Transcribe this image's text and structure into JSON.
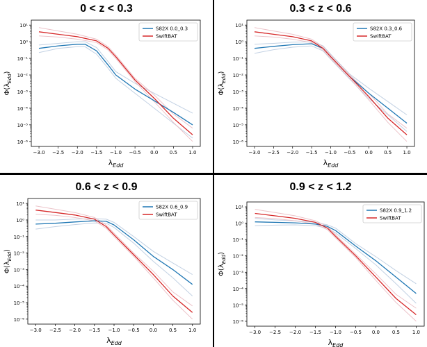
{
  "colors": {
    "s82x": "#1f77b4",
    "swift": "#d62728",
    "band_s82x": "#b7c9de",
    "band_swift": "#e9b8bf",
    "divider": "#000000"
  },
  "panels": [
    {
      "title": "0 < z < 0.3",
      "chart_data": {
        "type": "line",
        "title": "0 < z < 0.3",
        "xlabel": "λ_Edd",
        "ylabel": "Φ(λ_Edd)",
        "xlim": [
          -3.2,
          1.2
        ],
        "ylog": true,
        "ylim_exp": [
          -6.3,
          1.3
        ],
        "xticks": [
          -3.0,
          -2.5,
          -2.0,
          -1.5,
          -1.0,
          -0.5,
          0.0,
          0.5,
          1.0
        ],
        "xtick_labels": [
          "−3.0",
          "−2.5",
          "−2.0",
          "−1.5",
          "−1.0",
          "−0.5",
          "0.0",
          "0.5",
          "1.0"
        ],
        "yticks_exp": [
          -6,
          -5,
          -4,
          -3,
          -2,
          -1,
          0,
          1
        ],
        "ytick_labels": [
          "10⁻⁶",
          "10⁻⁵",
          "10⁻⁴",
          "10⁻³",
          "10⁻²",
          "10⁻¹",
          "10⁰",
          "10¹"
        ],
        "legend_loc": "upper right",
        "grid": false,
        "series": [
          {
            "name": "S82X 0.0_0.3",
            "color_key": "s82x",
            "x": [
              -3.0,
              -2.5,
              -2.0,
              -1.8,
              -1.5,
              -1.2,
              -1.0,
              -0.5,
              0.0,
              0.5,
              1.0
            ],
            "log10_y": [
              -0.4,
              -0.25,
              -0.15,
              -0.15,
              -0.55,
              -1.4,
              -2.0,
              -2.85,
              -3.55,
              -4.25,
              -5.0
            ],
            "log10_lo": [
              -0.65,
              -0.4,
              -0.3,
              -0.3,
              -0.75,
              -1.6,
              -2.2,
              -3.1,
              -4.0,
              -4.9,
              -5.8
            ],
            "log10_hi": [
              -0.2,
              -0.1,
              0.0,
              0.0,
              -0.35,
              -1.2,
              -1.8,
              -2.5,
              -3.1,
              -3.7,
              -4.3
            ]
          },
          {
            "name": "SwiftBAT",
            "color_key": "swift",
            "x": [
              -3.0,
              -2.5,
              -2.0,
              -1.5,
              -1.2,
              -1.0,
              -0.5,
              0.0,
              0.5,
              1.0
            ],
            "log10_y": [
              0.6,
              0.45,
              0.3,
              0.05,
              -0.4,
              -0.9,
              -2.3,
              -3.4,
              -4.6,
              -5.6
            ],
            "log10_lo": [
              0.35,
              0.28,
              0.15,
              -0.05,
              -0.5,
              -1.0,
              -2.4,
              -3.6,
              -4.85,
              -6.0
            ],
            "log10_hi": [
              0.85,
              0.65,
              0.45,
              0.15,
              -0.3,
              -0.8,
              -2.2,
              -3.2,
              -4.35,
              -5.2
            ]
          }
        ]
      }
    },
    {
      "title": "0.3 < z < 0.6",
      "chart_data": {
        "type": "line",
        "title": "0.3 < z < 0.6",
        "xlabel": "λ_Edd",
        "ylabel": "Φ(λ_Edd)",
        "xlim": [
          -3.2,
          1.2
        ],
        "ylog": true,
        "ylim_exp": [
          -6.3,
          1.3
        ],
        "xticks": [
          -3.0,
          -2.5,
          -2.0,
          -1.5,
          -1.0,
          -0.5,
          0.0,
          0.5,
          1.0
        ],
        "xtick_labels": [
          "−3.0",
          "−2.5",
          "−2.0",
          "−1.5",
          "−1.0",
          "−0.5",
          "0.0",
          "0.5",
          "1.0"
        ],
        "yticks_exp": [
          -6,
          -5,
          -4,
          -3,
          -2,
          -1,
          0,
          1
        ],
        "ytick_labels": [
          "10⁻⁶",
          "10⁻⁵",
          "10⁻⁴",
          "10⁻³",
          "10⁻²",
          "10⁻¹",
          "10⁰",
          "10¹"
        ],
        "legend_loc": "upper right",
        "grid": false,
        "series": [
          {
            "name": "S82X 0.3_0.6",
            "color_key": "s82x",
            "x": [
              -3.0,
              -2.5,
              -2.0,
              -1.5,
              -1.2,
              -1.0,
              -0.5,
              0.0,
              0.5,
              1.0
            ],
            "log10_y": [
              -0.4,
              -0.28,
              -0.18,
              -0.12,
              -0.4,
              -0.9,
              -2.1,
              -3.1,
              -4.0,
              -4.9
            ],
            "log10_lo": [
              -0.7,
              -0.48,
              -0.33,
              -0.25,
              -0.55,
              -1.05,
              -2.25,
              -3.4,
              -4.4,
              -5.4
            ],
            "log10_hi": [
              -0.15,
              -0.1,
              -0.03,
              0.0,
              -0.25,
              -0.75,
              -1.95,
              -2.8,
              -3.6,
              -4.4
            ]
          },
          {
            "name": "SwiftBAT",
            "color_key": "swift",
            "x": [
              -3.0,
              -2.5,
              -2.0,
              -1.5,
              -1.2,
              -1.0,
              -0.5,
              0.0,
              0.5,
              1.0
            ],
            "log10_y": [
              0.6,
              0.45,
              0.3,
              0.05,
              -0.4,
              -0.9,
              -2.1,
              -3.3,
              -4.6,
              -5.6
            ],
            "log10_lo": [
              0.35,
              0.28,
              0.15,
              -0.05,
              -0.5,
              -1.0,
              -2.2,
              -3.5,
              -4.85,
              -6.0
            ],
            "log10_hi": [
              0.85,
              0.65,
              0.45,
              0.15,
              -0.3,
              -0.8,
              -2.0,
              -3.1,
              -4.35,
              -5.2
            ]
          }
        ]
      }
    },
    {
      "title": "0.6 < z < 0.9",
      "chart_data": {
        "type": "line",
        "title": "0.6 < z < 0.9",
        "xlabel": "λ_Edd",
        "ylabel": "Φ(λ_Edd)",
        "xlim": [
          -3.2,
          1.2
        ],
        "ylog": true,
        "ylim_exp": [
          -6.3,
          1.3
        ],
        "xticks": [
          -3.0,
          -2.5,
          -2.0,
          -1.5,
          -1.0,
          -0.5,
          0.0,
          0.5,
          1.0
        ],
        "xtick_labels": [
          "−3.0",
          "−2.5",
          "−2.0",
          "−1.5",
          "−1.0",
          "−0.5",
          "0.0",
          "0.5",
          "1.0"
        ],
        "yticks_exp": [
          -6,
          -5,
          -4,
          -3,
          -2,
          -1,
          0,
          1
        ],
        "ytick_labels": [
          "10⁻⁶",
          "10⁻⁵",
          "10⁻⁴",
          "10⁻³",
          "10⁻²",
          "10⁻¹",
          "10⁰",
          "10¹"
        ],
        "legend_loc": "upper right",
        "grid": false,
        "series": [
          {
            "name": "S82X 0.6_0.9",
            "color_key": "s82x",
            "x": [
              -3.0,
              -2.5,
              -2.0,
              -1.5,
              -1.2,
              -1.0,
              -0.5,
              0.0,
              0.5,
              1.0
            ],
            "log10_y": [
              -0.25,
              -0.2,
              -0.12,
              -0.05,
              -0.08,
              -0.3,
              -1.2,
              -2.2,
              -3.0,
              -3.9
            ],
            "log10_lo": [
              -0.55,
              -0.4,
              -0.28,
              -0.18,
              -0.2,
              -0.45,
              -1.4,
              -2.5,
              -3.5,
              -4.6
            ],
            "log10_hi": [
              0.0,
              0.0,
              0.05,
              0.08,
              0.05,
              -0.15,
              -1.0,
              -1.9,
              -2.6,
              -3.3
            ]
          },
          {
            "name": "SwiftBAT",
            "color_key": "swift",
            "x": [
              -3.0,
              -2.5,
              -2.0,
              -1.5,
              -1.2,
              -1.0,
              -0.5,
              0.0,
              0.5,
              1.0
            ],
            "log10_y": [
              0.6,
              0.45,
              0.3,
              0.05,
              -0.4,
              -0.9,
              -2.1,
              -3.3,
              -4.6,
              -5.6
            ],
            "log10_lo": [
              0.35,
              0.28,
              0.15,
              -0.05,
              -0.5,
              -1.0,
              -2.2,
              -3.5,
              -4.85,
              -6.0
            ],
            "log10_hi": [
              0.85,
              0.65,
              0.45,
              0.15,
              -0.3,
              -0.8,
              -2.0,
              -3.1,
              -4.35,
              -5.2
            ]
          }
        ]
      }
    },
    {
      "title": "0.9 < z < 1.2",
      "chart_data": {
        "type": "line",
        "title": "0.9 < z < 1.2",
        "xlabel": "λ_Edd",
        "ylabel": "Φ(λ_Edd)",
        "xlim": [
          -3.2,
          1.2
        ],
        "ylog": true,
        "ylim_exp": [
          -6.3,
          1.3
        ],
        "xticks": [
          -3.0,
          -2.5,
          -2.0,
          -1.5,
          -1.0,
          -0.5,
          0.0,
          0.5,
          1.0
        ],
        "xtick_labels": [
          "−3.0",
          "−2.5",
          "−2.0",
          "−1.5",
          "−1.0",
          "−0.5",
          "0.0",
          "0.5",
          "1.0"
        ],
        "yticks_exp": [
          -6,
          -5,
          -4,
          -3,
          -2,
          -1,
          0,
          1
        ],
        "ytick_labels": [
          "10⁻⁶",
          "10⁻⁵",
          "10⁻⁴",
          "10⁻³",
          "10⁻²",
          "10⁻¹",
          "10⁰",
          "10¹"
        ],
        "legend_loc": "upper right",
        "grid": false,
        "series": [
          {
            "name": "S82X 0.9_1.2",
            "color_key": "s82x",
            "x": [
              -3.0,
              -2.5,
              -2.0,
              -1.5,
              -1.2,
              -1.0,
              -0.5,
              0.0,
              0.5,
              1.0
            ],
            "log10_y": [
              0.08,
              0.05,
              0.02,
              -0.05,
              -0.2,
              -0.45,
              -1.4,
              -2.3,
              -3.3,
              -4.3
            ],
            "log10_lo": [
              -0.15,
              -0.12,
              -0.1,
              -0.15,
              -0.3,
              -0.6,
              -1.55,
              -2.55,
              -3.7,
              -4.9
            ],
            "log10_hi": [
              0.3,
              0.2,
              0.15,
              0.05,
              -0.1,
              -0.3,
              -1.25,
              -2.05,
              -2.9,
              -3.7
            ]
          },
          {
            "name": "SwiftBAT",
            "color_key": "swift",
            "x": [
              -3.0,
              -2.5,
              -2.0,
              -1.5,
              -1.2,
              -1.0,
              -0.5,
              0.0,
              0.5,
              1.0
            ],
            "log10_y": [
              0.6,
              0.45,
              0.3,
              0.05,
              -0.3,
              -0.8,
              -2.0,
              -3.3,
              -4.6,
              -5.6
            ],
            "log10_lo": [
              0.35,
              0.28,
              0.15,
              -0.05,
              -0.4,
              -0.9,
              -2.1,
              -3.5,
              -4.85,
              -6.0
            ],
            "log10_hi": [
              0.85,
              0.65,
              0.45,
              0.15,
              -0.2,
              -0.7,
              -1.9,
              -3.1,
              -4.35,
              -5.2
            ]
          }
        ]
      }
    }
  ]
}
